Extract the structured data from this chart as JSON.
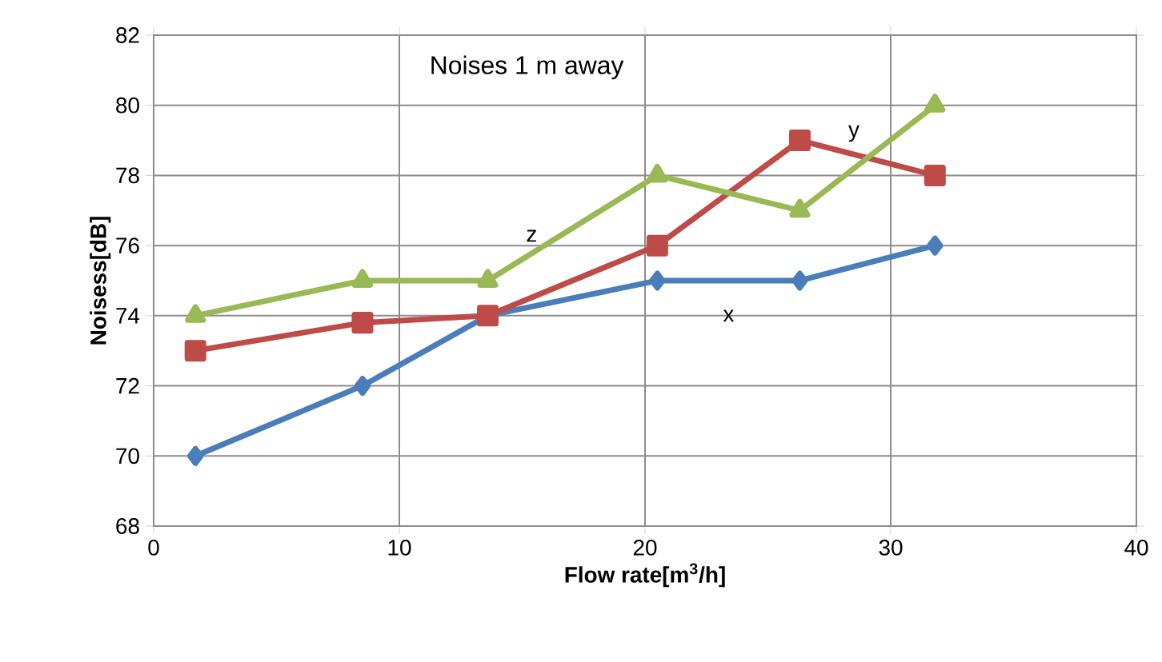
{
  "chart_data": {
    "type": "line",
    "title": "Noises   1 m away",
    "xlabel": "Flow rate[m$^{3}$/h]",
    "ylabel": "Noisess[dB]",
    "xlim": [
      0,
      40
    ],
    "xticks": [
      0,
      10,
      20,
      30,
      40
    ],
    "ylim": [
      68,
      82
    ],
    "yticks": [
      68,
      70,
      72,
      74,
      76,
      78,
      80,
      82
    ],
    "grid": true,
    "legend": false,
    "series": [
      {
        "name": "x",
        "color": "#4a7ebb",
        "marker": "diamond",
        "x": [
          1.7,
          8.5,
          13.6,
          20.5,
          26.3,
          31.8
        ],
        "values": [
          70,
          72,
          74,
          75,
          75,
          76
        ]
      },
      {
        "name": "y",
        "color": "#be4b48",
        "marker": "square",
        "x": [
          1.7,
          8.5,
          13.6,
          20.5,
          26.3,
          31.8
        ],
        "values": [
          73,
          73.8,
          74,
          76,
          79,
          78
        ]
      },
      {
        "name": "z",
        "color": "#98b954",
        "marker": "triangle",
        "x": [
          1.7,
          8.5,
          13.6,
          20.5,
          26.3,
          31.8
        ],
        "values": [
          74,
          75,
          75,
          78,
          77,
          80
        ]
      }
    ]
  }
}
